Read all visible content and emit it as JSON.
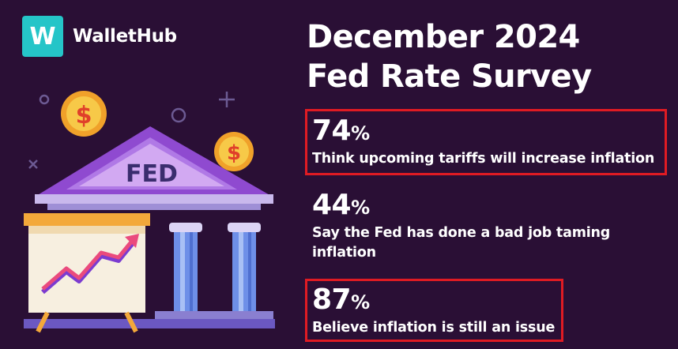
{
  "brand": {
    "logo_letter": "W",
    "name": "WalletHub"
  },
  "title": {
    "line1": "December 2024",
    "line2": "Fed Rate Survey"
  },
  "illustration": {
    "building_label": "FED",
    "coin_symbol": "$"
  },
  "stats": [
    {
      "value": "74",
      "unit": "%",
      "text": "Think upcoming tariffs will increase inflation",
      "highlighted": true
    },
    {
      "value": "44",
      "unit": "%",
      "text": "Say the Fed has done a bad job taming inflation",
      "highlighted": false
    },
    {
      "value": "87",
      "unit": "%",
      "text": "Believe inflation is still an issue",
      "highlighted": true
    }
  ],
  "colors": {
    "background": "#2a0f35",
    "logo": "#25c5c8",
    "highlight_border": "#e01b23",
    "text": "#ffffff"
  }
}
